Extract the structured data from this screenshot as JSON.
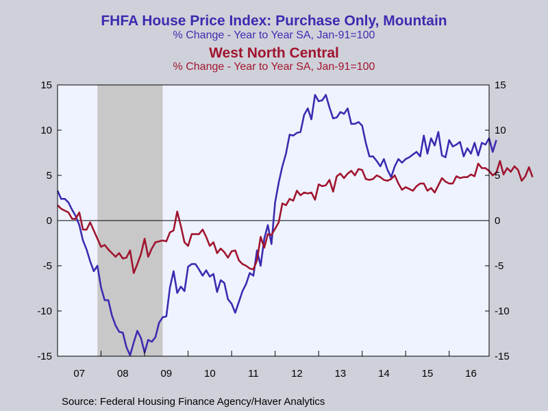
{
  "chart_data": {
    "type": "line",
    "title": "FHFA House Price Index: Purchase Only, Mountain",
    "subtitle": "% Change - Year to Year    SA, Jan-91=100",
    "title2": "West North Central",
    "subtitle2": "% Change - Year to Year    SA, Jan-91=100",
    "source": "Source:  Federal Housing Finance Agency/Haver Analytics",
    "ylim": [
      -15,
      15
    ],
    "y_ticks": [
      "15",
      "10",
      "5",
      "0",
      "-5",
      "-10",
      "-15"
    ],
    "x_ticks": [
      "07",
      "08",
      "09",
      "10",
      "11",
      "12",
      "13",
      "14",
      "15",
      "16"
    ],
    "recession_shading": {
      "start": 2007.917,
      "end": 2009.417,
      "color": "#c8c8c8"
    },
    "background": "#eef3ff",
    "series": [
      {
        "name": "Mountain",
        "color": "#3c2bb0",
        "start": 2007.0,
        "step": 0.08333,
        "values": [
          3.3,
          2.4,
          2.4,
          2.0,
          1.2,
          0.5,
          -0.5,
          -2.2,
          -3.2,
          -4.5,
          -5.6,
          -5.0,
          -7.4,
          -8.8,
          -8.8,
          -10.5,
          -11.6,
          -12.3,
          -12.4,
          -14.0,
          -14.9,
          -13.5,
          -12.2,
          -13.0,
          -14.6,
          -13.2,
          -13.4,
          -12.9,
          -11.3,
          -10.7,
          -10.6,
          -7.4,
          -5.6,
          -8.0,
          -7.3,
          -7.8,
          -5.1,
          -4.8,
          -4.8,
          -5.4,
          -6.1,
          -5.5,
          -6.2,
          -5.9,
          -7.9,
          -6.6,
          -6.9,
          -8.7,
          -9.2,
          -10.2,
          -9.0,
          -7.8,
          -7.0,
          -5.8,
          -6.1,
          -3.3,
          -5.0,
          -2.0,
          -0.5,
          -2.6,
          2.0,
          4.2,
          6.0,
          7.4,
          9.5,
          9.4,
          9.7,
          9.8,
          11.7,
          12.4,
          11.2,
          13.9,
          13.2,
          13.3,
          13.9,
          12.5,
          11.3,
          11.4,
          12.0,
          11.8,
          12.4,
          10.7,
          10.7,
          10.9,
          10.5,
          8.6,
          7.1,
          7.1,
          6.6,
          6.0,
          6.8,
          5.6,
          4.8,
          6.0,
          6.8,
          6.4,
          6.8,
          7.0,
          7.3,
          7.6,
          7.1,
          9.4,
          7.4,
          9.1,
          8.3,
          9.8,
          7.2,
          7.0,
          8.9,
          8.2,
          8.4,
          8.7,
          7.1,
          8.0,
          7.4,
          8.6,
          7.2,
          8.6,
          8.4,
          9.1,
          7.6,
          8.9
        ]
      },
      {
        "name": "West North Central",
        "color": "#a0142e",
        "start": 2007.0,
        "step": 0.08333,
        "values": [
          1.7,
          1.3,
          1.1,
          0.9,
          0.2,
          0.2,
          0.9,
          -1.0,
          -1.0,
          -0.2,
          -1.1,
          -2.0,
          -2.9,
          -2.7,
          -3.2,
          -3.6,
          -4.0,
          -3.6,
          -4.2,
          -4.1,
          -3.3,
          -5.8,
          -4.8,
          -3.7,
          -2.0,
          -4.0,
          -3.1,
          -2.4,
          -2.3,
          -2.2,
          -2.3,
          -1.3,
          -1.1,
          1.0,
          -0.6,
          -2.4,
          -2.8,
          -1.5,
          -1.5,
          -1.5,
          -1.0,
          -1.8,
          -2.8,
          -2.4,
          -3.6,
          -3.1,
          -3.5,
          -4.1,
          -3.4,
          -3.3,
          -4.4,
          -4.8,
          -5.0,
          -5.3,
          -5.4,
          -4.4,
          -1.8,
          -3.0,
          -1.5,
          -1.6,
          -0.9,
          -0.2,
          1.9,
          1.7,
          2.4,
          2.2,
          3.3,
          2.8,
          3.1,
          3.0,
          3.1,
          2.3,
          4.0,
          3.8,
          3.9,
          4.5,
          3.2,
          4.9,
          5.2,
          4.7,
          5.2,
          5.5,
          5.0,
          5.7,
          5.6,
          4.6,
          4.5,
          4.6,
          5.0,
          4.8,
          4.5,
          4.4,
          4.6,
          5.0,
          4.1,
          3.4,
          3.7,
          3.5,
          3.3,
          3.8,
          4.1,
          4.1,
          3.3,
          3.6,
          3.1,
          3.9,
          4.7,
          4.3,
          4.1,
          4.1,
          4.9,
          4.7,
          4.8,
          4.8,
          5.1,
          4.9,
          6.3,
          5.8,
          5.8,
          5.5,
          5.0,
          5.3,
          6.6,
          5.1,
          5.8,
          5.4,
          6.0,
          5.6,
          4.4,
          4.9,
          5.9,
          4.8
        ]
      }
    ]
  }
}
